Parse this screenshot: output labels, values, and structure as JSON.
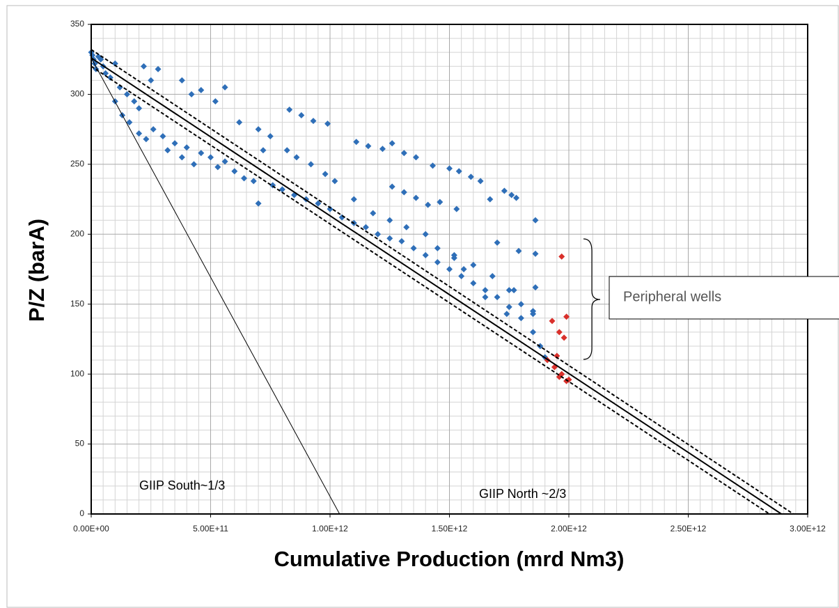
{
  "chart_data": {
    "type": "scatter",
    "xlabel": "Cumulative Production (mrd Nm3)",
    "ylabel": "P/Z (barA)",
    "xlim": [
      0,
      3000000000000.0
    ],
    "ylim": [
      0,
      350
    ],
    "xticks": [
      {
        "value": 0,
        "label": "0.00E+00"
      },
      {
        "value": 500000000000.0,
        "label": "5.00E+11"
      },
      {
        "value": 1000000000000.0,
        "label": "1.00E+12"
      },
      {
        "value": 1500000000000.0,
        "label": "1.50E+12"
      },
      {
        "value": 2000000000000.0,
        "label": "2.00E+12"
      },
      {
        "value": 2500000000000.0,
        "label": "2.50E+12"
      },
      {
        "value": 3000000000000.0,
        "label": "3.00E+12"
      }
    ],
    "yticks": [
      0,
      50,
      100,
      150,
      200,
      250,
      300,
      350
    ],
    "grid": true,
    "minor_xticks": [
      50000000000.0,
      100000000000.0,
      150000000000.0,
      200000000000.0,
      250000000000.0,
      300000000000.0,
      350000000000.0,
      400000000000.0,
      450000000000.0,
      550000000000.0,
      600000000000.0,
      650000000000.0,
      700000000000.0,
      750000000000.0,
      800000000000.0,
      850000000000.0,
      900000000000.0,
      950000000000.0,
      1050000000000.0,
      1100000000000.0,
      1150000000000.0,
      1200000000000.0,
      1250000000000.0,
      1300000000000.0,
      1350000000000.0,
      1400000000000.0,
      1450000000000.0,
      1550000000000.0,
      1600000000000.0,
      1650000000000.0,
      1700000000000.0,
      1750000000000.0,
      1800000000000.0,
      1850000000000.0,
      1900000000000.0,
      1950000000000.0,
      2050000000000.0,
      2100000000000.0,
      2150000000000.0,
      2200000000000.0,
      2250000000000.0,
      2300000000000.0,
      2350000000000.0,
      2400000000000.0,
      2450000000000.0,
      2550000000000.0,
      2600000000000.0,
      2650000000000.0,
      2700000000000.0,
      2750000000000.0,
      2800000000000.0,
      2850000000000.0,
      2900000000000.0,
      2950000000000.0
    ],
    "minor_yticks": [
      10,
      20,
      30,
      40,
      60,
      70,
      80,
      90,
      110,
      120,
      130,
      140,
      160,
      170,
      180,
      190,
      210,
      220,
      230,
      240,
      260,
      270,
      280,
      290,
      310,
      320,
      330,
      340
    ],
    "annotations": [
      "GIIP South~1/3",
      "GIIP North ~2/3",
      "Peripheral wells"
    ],
    "series": [
      {
        "type": "scatter",
        "color": "#2f6fb8",
        "x": [
          0,
          5000000000.0,
          10000000000.0,
          15000000000.0,
          20000000000.0,
          30000000000.0,
          40000000000.0,
          50000000000.0,
          60000000000.0,
          80000000000.0,
          100000000000.0,
          120000000000.0,
          150000000000.0,
          180000000000.0,
          200000000000.0,
          220000000000.0,
          250000000000.0,
          280000000000.0,
          100000000000.0,
          130000000000.0,
          160000000000.0,
          200000000000.0,
          230000000000.0,
          260000000000.0,
          300000000000.0,
          320000000000.0,
          350000000000.0,
          380000000000.0,
          400000000000.0,
          430000000000.0,
          460000000000.0,
          500000000000.0,
          530000000000.0,
          560000000000.0,
          600000000000.0,
          640000000000.0,
          680000000000.0,
          700000000000.0,
          720000000000.0,
          760000000000.0,
          800000000000.0,
          850000000000.0,
          900000000000.0,
          950000000000.0,
          1000000000000.0,
          1050000000000.0,
          1100000000000.0,
          1150000000000.0,
          1200000000000.0,
          1250000000000.0,
          1300000000000.0,
          1350000000000.0,
          1400000000000.0,
          1450000000000.0,
          1500000000000.0,
          1550000000000.0,
          1600000000000.0,
          1650000000000.0,
          1700000000000.0,
          1750000000000.0,
          1800000000000.0,
          1850000000000.0,
          1900000000000.0,
          1880000000000.0,
          380000000000.0,
          420000000000.0,
          460000000000.0,
          520000000000.0,
          560000000000.0,
          620000000000.0,
          700000000000.0,
          750000000000.0,
          820000000000.0,
          860000000000.0,
          920000000000.0,
          980000000000.0,
          1020000000000.0,
          1100000000000.0,
          1180000000000.0,
          1250000000000.0,
          1320000000000.0,
          1400000000000.0,
          1450000000000.0,
          1520000000000.0,
          1600000000000.0,
          1680000000000.0,
          1750000000000.0,
          1800000000000.0,
          1850000000000.0,
          830000000000.0,
          880000000000.0,
          930000000000.0,
          990000000000.0,
          1110000000000.0,
          1160000000000.0,
          1220000000000.0,
          1260000000000.0,
          1310000000000.0,
          1360000000000.0,
          1430000000000.0,
          1500000000000.0,
          1540000000000.0,
          1590000000000.0,
          1630000000000.0,
          1670000000000.0,
          1730000000000.0,
          1760000000000.0,
          1780000000000.0,
          1860000000000.0,
          1260000000000.0,
          1310000000000.0,
          1360000000000.0,
          1410000000000.0,
          1460000000000.0,
          1530000000000.0,
          1700000000000.0,
          1790000000000.0,
          1860000000000.0,
          1860000000000.0,
          1770000000000.0,
          1740000000000.0,
          1850000000000.0,
          1650000000000.0,
          1520000000000.0,
          1560000000000.0
        ],
        "values": [
          330,
          328,
          325,
          322,
          318,
          327,
          325,
          320,
          315,
          312,
          322,
          305,
          300,
          295,
          290,
          320,
          310,
          318,
          295,
          285,
          280,
          272,
          268,
          275,
          270,
          260,
          265,
          255,
          262,
          250,
          258,
          255,
          248,
          252,
          245,
          240,
          238,
          222,
          260,
          235,
          232,
          228,
          225,
          222,
          218,
          212,
          208,
          205,
          200,
          197,
          195,
          190,
          185,
          180,
          175,
          170,
          165,
          160,
          155,
          148,
          140,
          130,
          112,
          120,
          310,
          300,
          303,
          295,
          305,
          280,
          275,
          270,
          260,
          255,
          250,
          243,
          238,
          225,
          215,
          210,
          205,
          200,
          190,
          185,
          178,
          170,
          160,
          150,
          145,
          289,
          285,
          281,
          279,
          266,
          263,
          261,
          265,
          258,
          255,
          249,
          247,
          245,
          241,
          238,
          225,
          231,
          228,
          226,
          210,
          234,
          230,
          226,
          221,
          223,
          218,
          194,
          188,
          186,
          162,
          160,
          143,
          143,
          155,
          183,
          175
        ]
      },
      {
        "type": "scatter",
        "color": "#d9302b",
        "x": [
          1970000000000.0,
          1990000000000.0,
          1930000000000.0,
          1960000000000.0,
          1980000000000.0,
          1950000000000.0,
          1910000000000.0,
          1940000000000.0,
          1970000000000.0,
          1990000000000.0,
          1960000000000.0,
          2000000000000.0
        ],
        "values": [
          184,
          141,
          138,
          130,
          126,
          113,
          110,
          105,
          100,
          95,
          98,
          96
        ]
      },
      {
        "type": "line",
        "color": "#000000",
        "x": [
          0,
          2890000000000.0
        ],
        "values": [
          326,
          0
        ]
      },
      {
        "type": "line",
        "color": "#000000",
        "dashed": true,
        "x": [
          0,
          2940000000000.0
        ],
        "values": [
          332,
          0
        ]
      },
      {
        "type": "line",
        "color": "#000000",
        "dashed": true,
        "x": [
          0,
          2840000000000.0
        ],
        "values": [
          320,
          0
        ]
      },
      {
        "type": "line",
        "color": "#000000",
        "thin": true,
        "x": [
          0,
          1040000000000.0
        ],
        "values": [
          326,
          0
        ]
      }
    ]
  }
}
